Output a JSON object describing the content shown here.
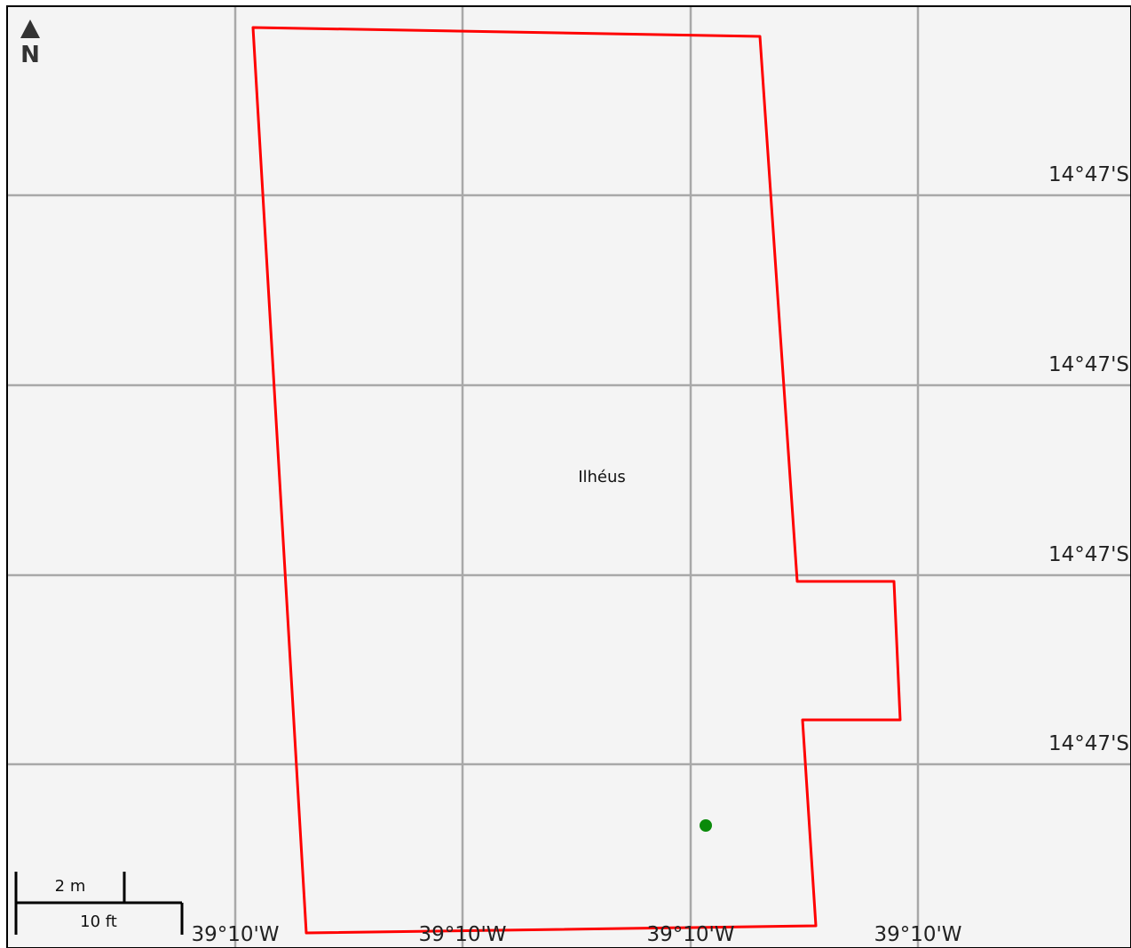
{
  "north_arrow": {
    "label": "N"
  },
  "latitude_labels": [
    "14°47'S",
    "14°47'S",
    "14°47'S",
    "14°47'S"
  ],
  "longitude_labels": [
    "39°10'W",
    "39°10'W",
    "39°10'W",
    "39°10'W"
  ],
  "place": {
    "name": "Ilhéus"
  },
  "scale_bar": {
    "metric_label": "2 m",
    "imperial_label": "10 ft"
  },
  "colors": {
    "background": "#f4f4f4",
    "frame": "#000000",
    "grid": "#a8a8a8",
    "boundary": "#ff0000",
    "point_marker": "#0a8a0a"
  }
}
